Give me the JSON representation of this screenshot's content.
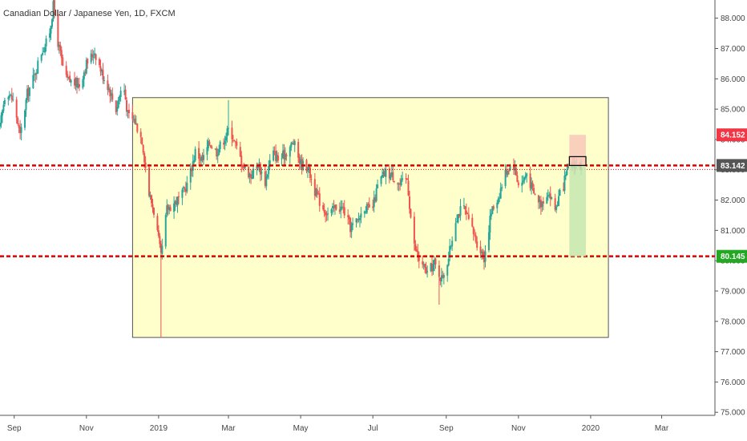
{
  "chart_data": {
    "type": "candlestick",
    "title": "Canadian Dollar / Japanese Yen, 1D, FXCM",
    "y_axis": {
      "min": 74.9,
      "max": 88.6,
      "ticks": [
        "88.000",
        "87.000",
        "86.000",
        "85.000",
        "84.000",
        "83.000",
        "82.000",
        "81.000",
        "80.000",
        "79.000",
        "78.000",
        "77.000",
        "76.000",
        "75.000"
      ],
      "tick_values": [
        88,
        87,
        86,
        85,
        84,
        83,
        82,
        81,
        80,
        79,
        78,
        77,
        76,
        75
      ]
    },
    "x_axis": {
      "labels": [
        "Sep",
        "Nov",
        "2019",
        "Mar",
        "May",
        "Jul",
        "Sep",
        "Nov",
        "2020",
        "Mar"
      ],
      "dates": [
        "2018-09-01",
        "2018-11-01",
        "2019-01-01",
        "2019-03-01",
        "2019-05-01",
        "2019-07-01",
        "2019-09-01",
        "2019-11-01",
        "2020-01-01",
        "2020-03-01"
      ],
      "start": "2018-08-20",
      "end": "2020-04-15"
    },
    "price_path": [
      [
        "2018-08-20",
        84.4
      ],
      [
        "2018-08-25",
        85.7
      ],
      [
        "2018-09-01",
        85.2
      ],
      [
        "2018-09-06",
        84.1
      ],
      [
        "2018-09-12",
        85.5
      ],
      [
        "2018-09-18",
        86.1
      ],
      [
        "2018-09-24",
        86.9
      ],
      [
        "2018-09-30",
        87.3
      ],
      [
        "2018-10-04",
        88.4
      ],
      [
        "2018-10-08",
        87.2
      ],
      [
        "2018-10-14",
        86.0
      ],
      [
        "2018-10-20",
        85.9
      ],
      [
        "2018-10-26",
        85.8
      ],
      [
        "2018-11-01",
        86.5
      ],
      [
        "2018-11-08",
        86.9
      ],
      [
        "2018-11-14",
        86.2
      ],
      [
        "2018-11-20",
        85.7
      ],
      [
        "2018-11-26",
        85.0
      ],
      [
        "2018-12-02",
        85.9
      ],
      [
        "2018-12-06",
        84.8
      ],
      [
        "2018-12-12",
        84.6
      ],
      [
        "2018-12-18",
        84.0
      ],
      [
        "2018-12-24",
        82.2
      ],
      [
        "2018-12-29",
        81.5
      ],
      [
        "2019-01-03",
        80.1
      ],
      [
        "2019-01-08",
        81.7
      ],
      [
        "2019-01-14",
        81.9
      ],
      [
        "2019-01-20",
        82.1
      ],
      [
        "2019-01-26",
        82.6
      ],
      [
        "2019-02-01",
        83.6
      ],
      [
        "2019-02-07",
        83.3
      ],
      [
        "2019-02-13",
        83.9
      ],
      [
        "2019-02-19",
        83.6
      ],
      [
        "2019-02-25",
        84.0
      ],
      [
        "2019-03-02",
        84.4
      ],
      [
        "2019-03-08",
        83.7
      ],
      [
        "2019-03-14",
        83.1
      ],
      [
        "2019-03-20",
        82.8
      ],
      [
        "2019-03-26",
        83.2
      ],
      [
        "2019-04-01",
        82.6
      ],
      [
        "2019-04-07",
        83.6
      ],
      [
        "2019-04-13",
        83.3
      ],
      [
        "2019-04-19",
        83.6
      ],
      [
        "2019-04-25",
        83.9
      ],
      [
        "2019-05-01",
        83.2
      ],
      [
        "2019-05-07",
        83.1
      ],
      [
        "2019-05-13",
        82.3
      ],
      [
        "2019-05-19",
        81.8
      ],
      [
        "2019-05-25",
        81.5
      ],
      [
        "2019-05-31",
        81.8
      ],
      [
        "2019-06-06",
        81.7
      ],
      [
        "2019-06-12",
        81.1
      ],
      [
        "2019-06-18",
        81.3
      ],
      [
        "2019-06-24",
        81.8
      ],
      [
        "2019-06-30",
        81.6
      ],
      [
        "2019-07-06",
        82.6
      ],
      [
        "2019-07-12",
        82.9
      ],
      [
        "2019-07-18",
        82.8
      ],
      [
        "2019-07-24",
        82.5
      ],
      [
        "2019-07-30",
        82.7
      ],
      [
        "2019-08-04",
        80.6
      ],
      [
        "2019-08-10",
        79.9
      ],
      [
        "2019-08-16",
        79.6
      ],
      [
        "2019-08-22",
        79.9
      ],
      [
        "2019-08-28",
        79.4
      ],
      [
        "2019-09-03",
        80.1
      ],
      [
        "2019-09-09",
        81.4
      ],
      [
        "2019-09-15",
        81.8
      ],
      [
        "2019-09-21",
        81.2
      ],
      [
        "2019-09-27",
        80.6
      ],
      [
        "2019-10-03",
        80.1
      ],
      [
        "2019-10-09",
        81.6
      ],
      [
        "2019-10-15",
        82.1
      ],
      [
        "2019-10-21",
        82.9
      ],
      [
        "2019-10-27",
        83.3
      ],
      [
        "2019-11-02",
        82.4
      ],
      [
        "2019-11-08",
        82.9
      ],
      [
        "2019-11-14",
        82.2
      ],
      [
        "2019-11-20",
        81.9
      ],
      [
        "2019-11-26",
        82.3
      ],
      [
        "2019-12-02",
        81.7
      ],
      [
        "2019-12-08",
        82.4
      ],
      [
        "2019-12-14",
        83.1
      ],
      [
        "2019-12-18",
        83.2
      ],
      [
        "2019-12-24",
        83.1
      ]
    ],
    "rectangle": {
      "x_start": "2018-12-10",
      "x_end": "2020-01-16",
      "y_high": 85.38,
      "y_low": 77.47
    },
    "resistance_line": 83.142,
    "support_line": 80.145,
    "position": {
      "x_start": "2019-12-14",
      "x_end": "2019-12-28",
      "entry": 83.142,
      "stop": 84.152,
      "target": 80.145
    },
    "price_labels": [
      {
        "value": "84.152",
        "price": 84.152,
        "color": "#f23645"
      },
      {
        "value": "83.142",
        "price": 83.142,
        "color": "#555555"
      },
      {
        "value": "80.145",
        "price": 80.145,
        "color": "#22a822"
      }
    ],
    "colors": {
      "up": "#26a69a",
      "down": "#ef5350",
      "level": "#e00000",
      "box_fill": "#ffffcc",
      "box_stroke": "#555555",
      "stop_zone": "#f8c8b8",
      "target_zone": "#c6e8b0"
    }
  }
}
